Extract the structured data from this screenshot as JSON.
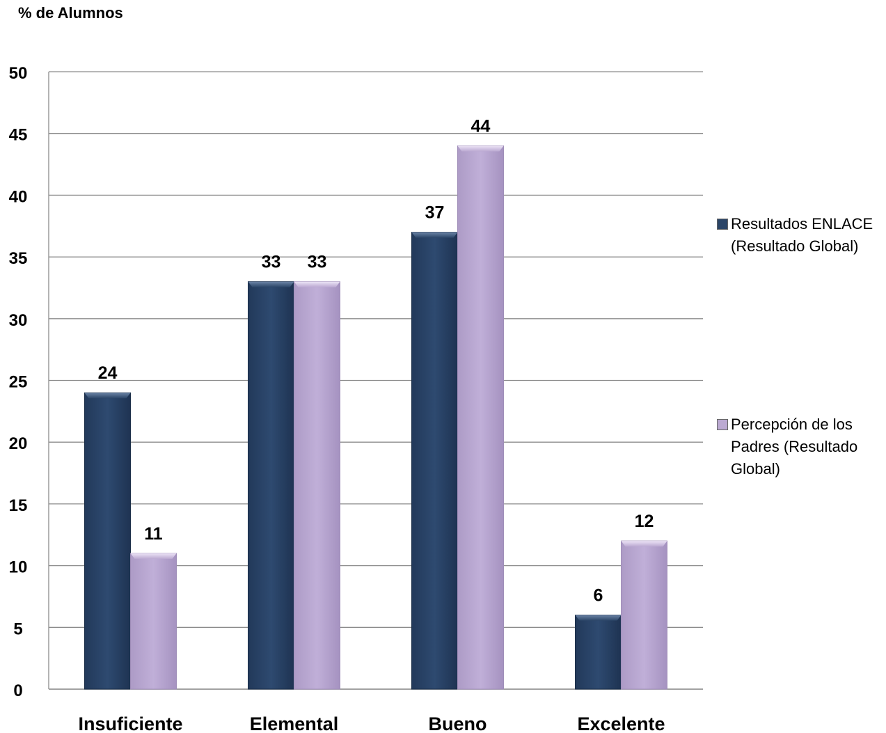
{
  "chart_data": {
    "type": "bar",
    "ylabel": "% de Alumnos",
    "categories": [
      "Insuficiente",
      "Elemental",
      "Bueno",
      "Excelente"
    ],
    "series": [
      {
        "name": "Resultados ENLACE (Resultado Global)",
        "values": [
          24,
          33,
          37,
          6
        ],
        "color": "#2b4567"
      },
      {
        "name": "Percepción de los Padres (Resultado Global)",
        "values": [
          11,
          33,
          44,
          12
        ],
        "color": "#bba9d2"
      }
    ],
    "ylim": [
      0,
      50
    ],
    "yticks": [
      0,
      5,
      10,
      15,
      20,
      25,
      30,
      35,
      40,
      45,
      50
    ],
    "grid": true,
    "legend_position": "right",
    "data_labels": true
  }
}
